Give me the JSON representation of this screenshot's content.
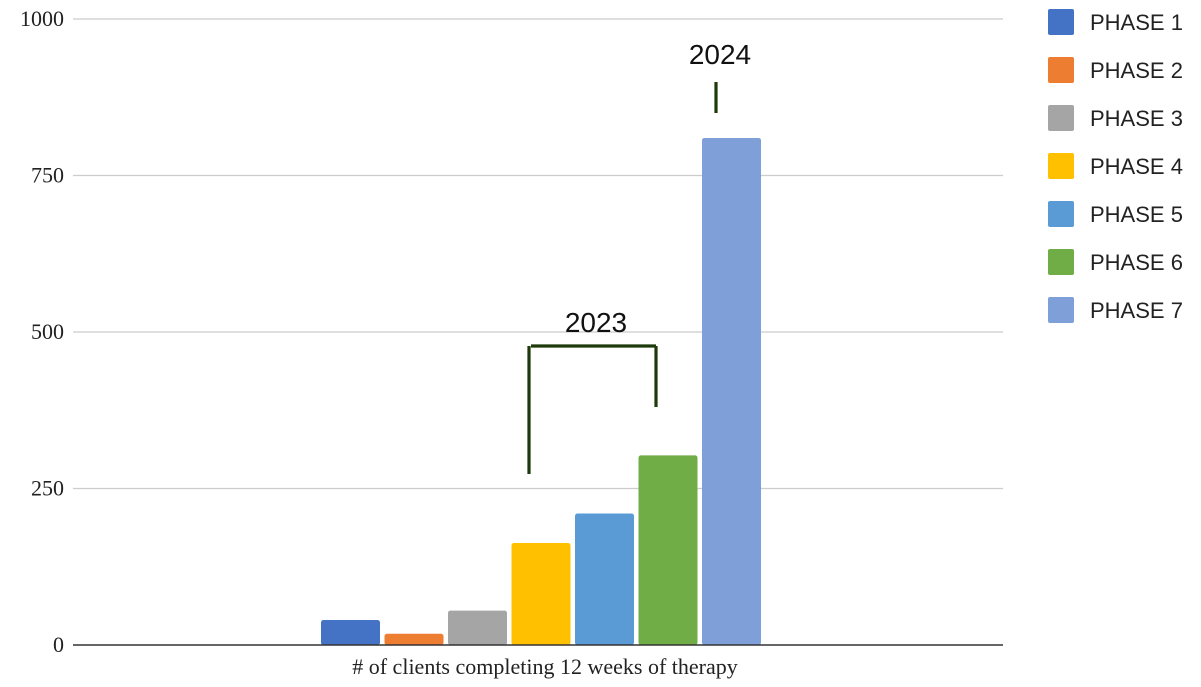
{
  "chart_data": {
    "type": "bar",
    "title": "",
    "xlabel": "# of clients completing 12 weeks of therapy",
    "ylabel": "",
    "ylim": [
      0,
      1000
    ],
    "yticks": [
      0,
      250,
      500,
      750,
      1000
    ],
    "grid": true,
    "legend_position": "right",
    "categories": [
      "# of clients completing 12 weeks of therapy"
    ],
    "series": [
      {
        "name": "PHASE 1",
        "values": [
          40
        ],
        "color": "#4472c4"
      },
      {
        "name": "PHASE 2",
        "values": [
          18
        ],
        "color": "#ed7d31"
      },
      {
        "name": "PHASE 3",
        "values": [
          55
        ],
        "color": "#a5a5a5"
      },
      {
        "name": "PHASE 4",
        "values": [
          163
        ],
        "color": "#ffc000"
      },
      {
        "name": "PHASE 5",
        "values": [
          210
        ],
        "color": "#5b9bd5"
      },
      {
        "name": "PHASE 6",
        "values": [
          303
        ],
        "color": "#70ad47"
      },
      {
        "name": "PHASE 7",
        "values": [
          810
        ],
        "color": "#7f9fd8"
      }
    ],
    "annotations": [
      {
        "text": "2023",
        "spans_series": [
          "PHASE 4",
          "PHASE 5",
          "PHASE 6"
        ]
      },
      {
        "text": "2024",
        "spans_series": [
          "PHASE 7"
        ]
      }
    ]
  }
}
